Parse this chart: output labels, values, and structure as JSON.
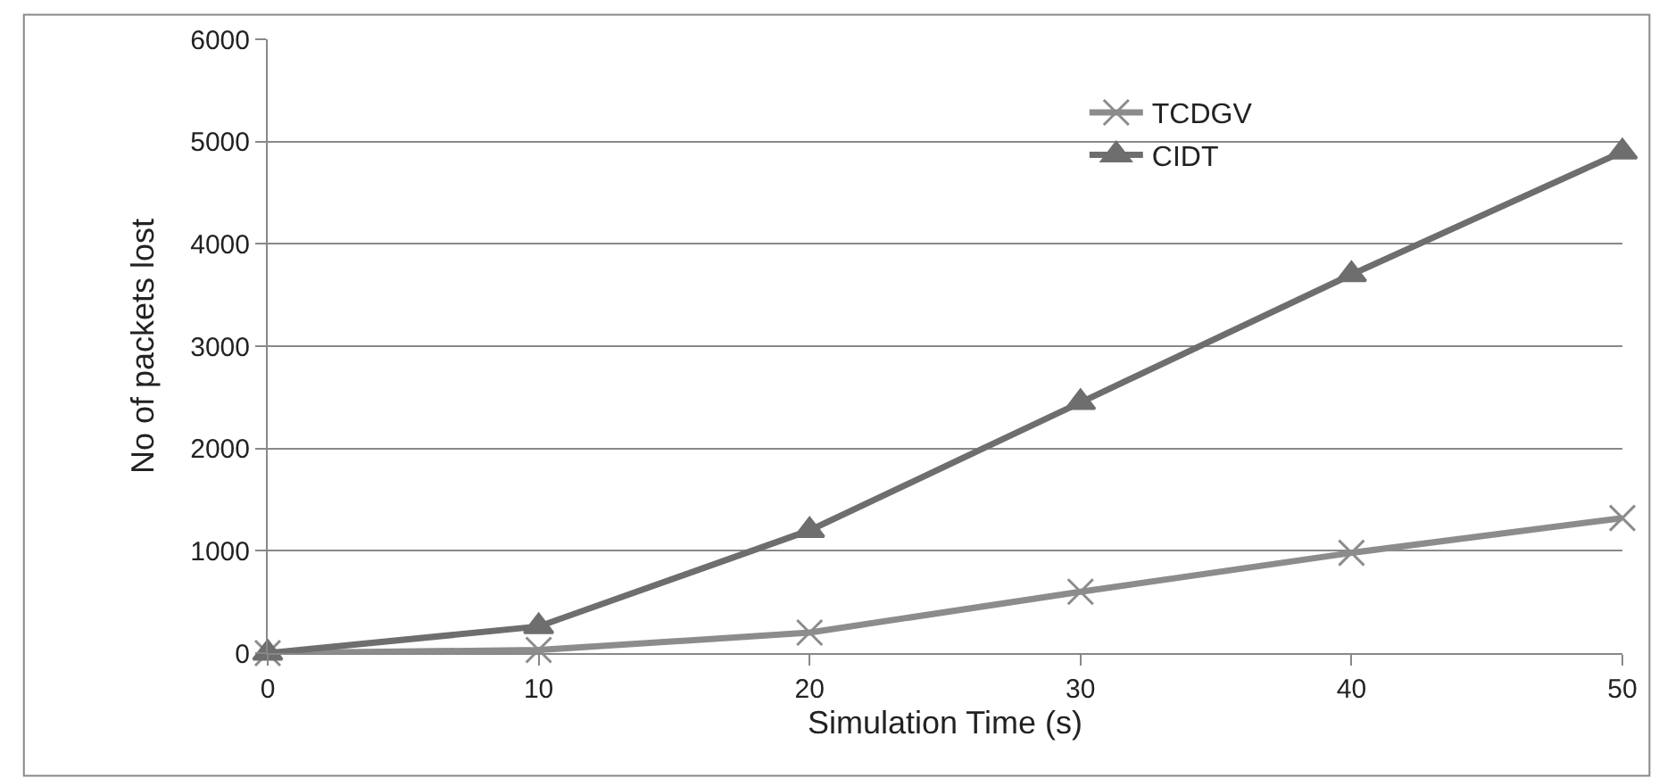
{
  "chart_data": {
    "type": "line",
    "xlabel": "Simulation Time (s)",
    "ylabel": "No of packets lost",
    "x": [
      0,
      10,
      20,
      30,
      40,
      50
    ],
    "xlim": [
      0,
      50
    ],
    "xticks": [
      0,
      10,
      20,
      30,
      40,
      50
    ],
    "ylim": [
      0,
      6000
    ],
    "yticks": [
      0,
      1000,
      2000,
      3000,
      4000,
      5000,
      6000
    ],
    "grid": "y",
    "legend": "top right",
    "series": [
      {
        "name": "TCDGV",
        "color": "#8c8c8c",
        "marker": "cross",
        "values": [
          0,
          30,
          200,
          600,
          980,
          1320
        ]
      },
      {
        "name": "CIDT",
        "color": "#6e6e6e",
        "marker": "triangle",
        "values": [
          0,
          260,
          1200,
          2450,
          3700,
          4900
        ]
      }
    ]
  }
}
